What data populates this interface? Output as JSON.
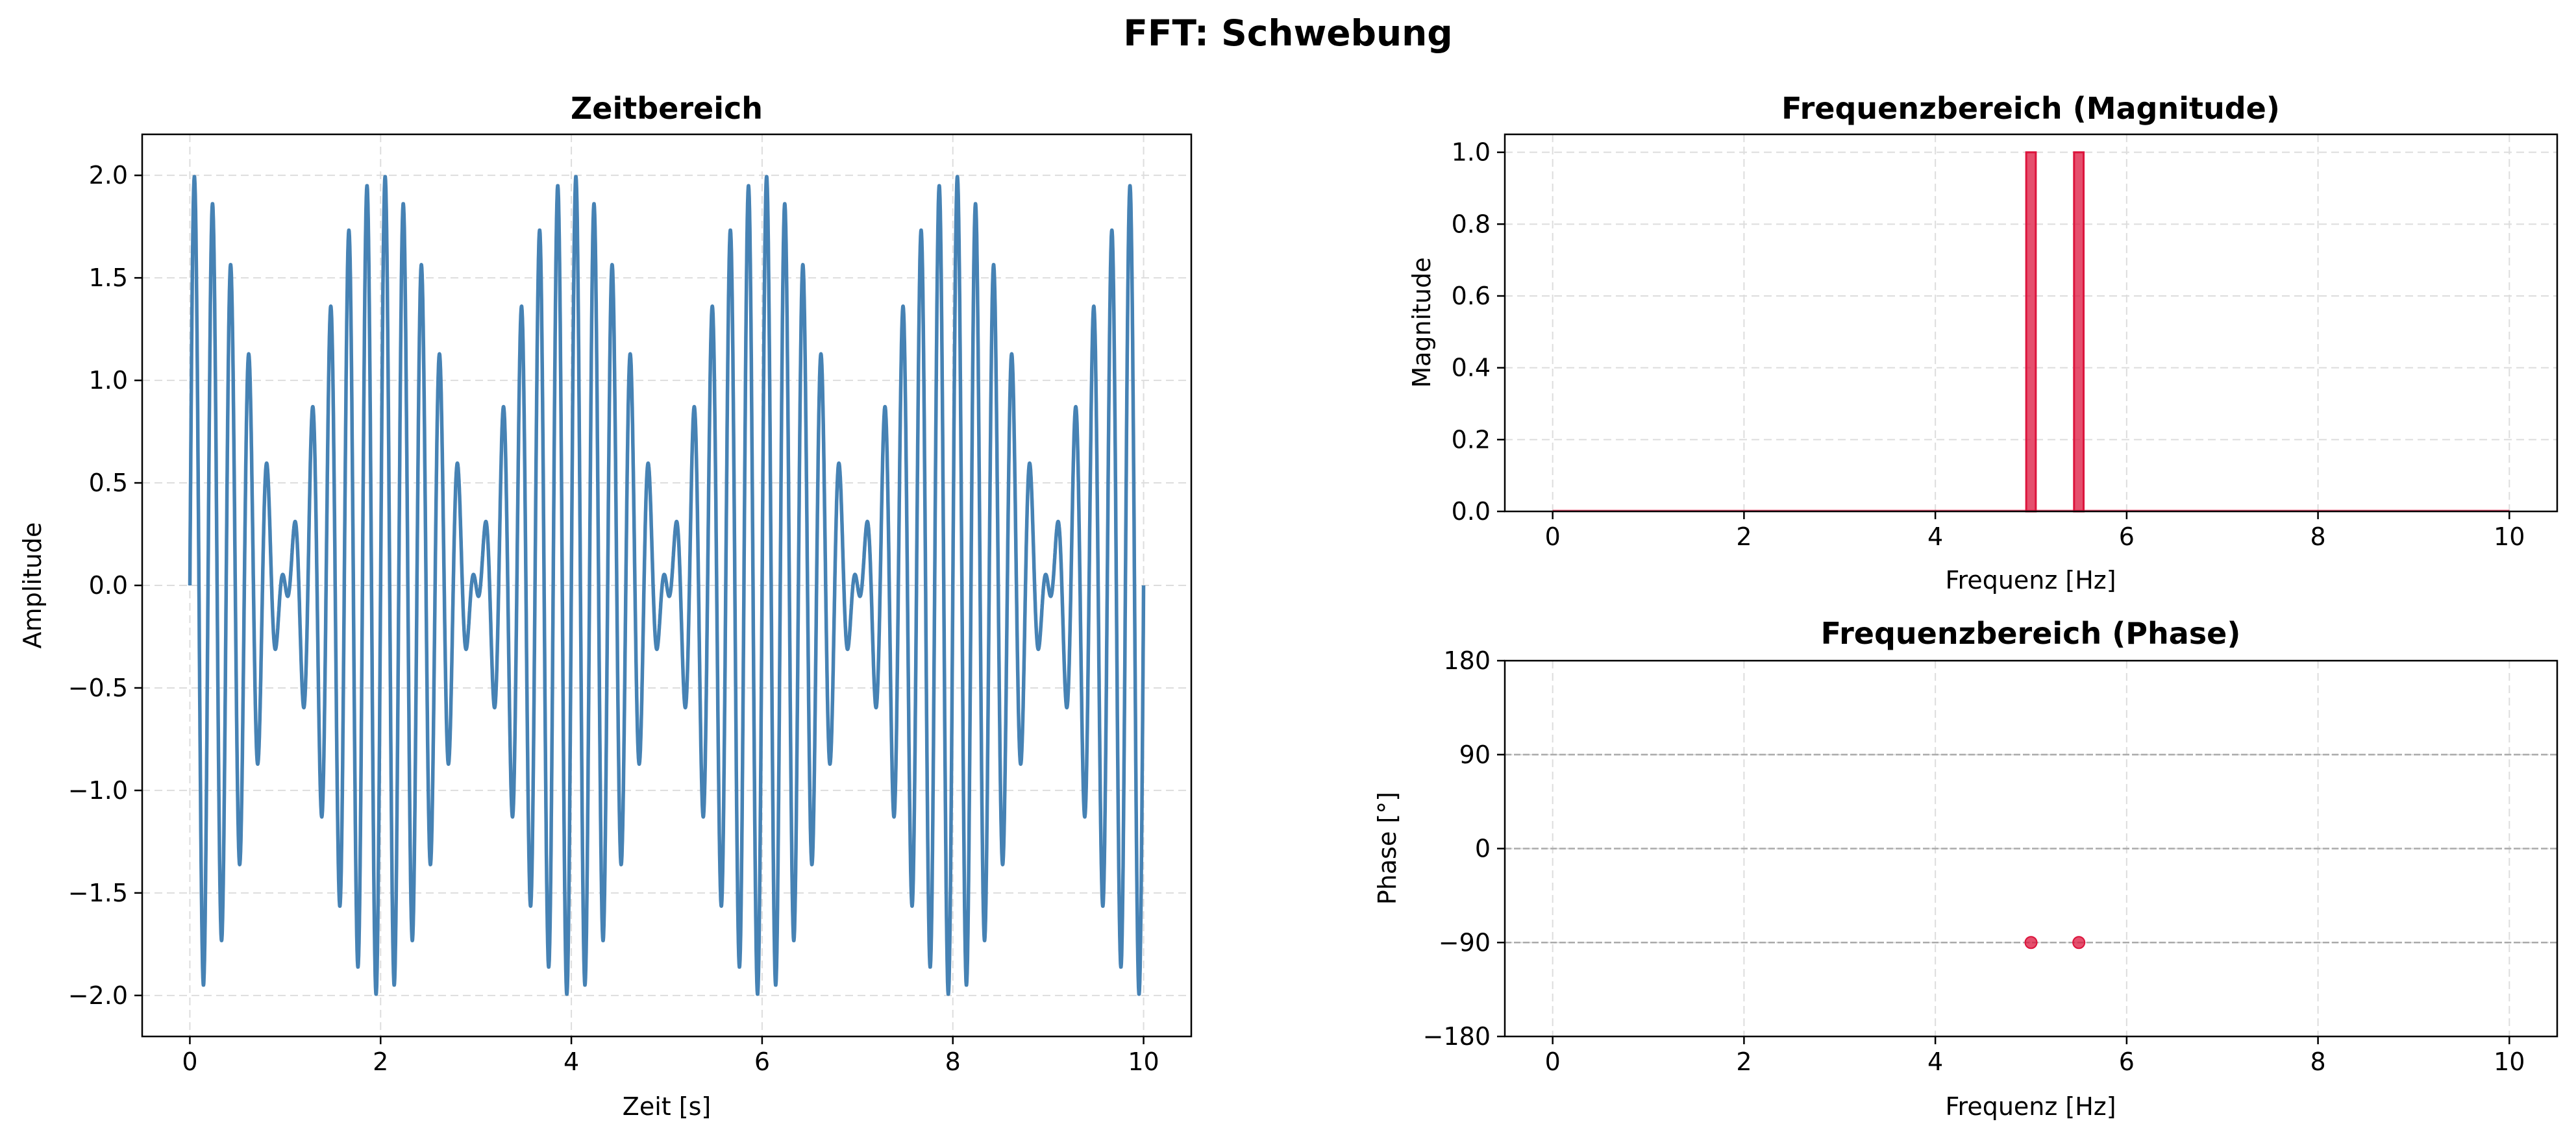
{
  "figure": {
    "title": "FFT: Schwebung"
  },
  "chart_data": [
    {
      "type": "line",
      "title": "Zeitbereich",
      "xlabel": "Zeit [s]",
      "ylabel": "Amplitude",
      "xlim": [
        -0.5,
        10.5
      ],
      "ylim": [
        -2.2,
        2.2
      ],
      "xticks": [
        0,
        2,
        4,
        6,
        8,
        10
      ],
      "xtick_labels": [
        "0",
        "2",
        "4",
        "6",
        "8",
        "10"
      ],
      "yticks": [
        -2.0,
        -1.5,
        -1.0,
        -0.5,
        0.0,
        0.5,
        1.0,
        1.5,
        2.0
      ],
      "ytick_labels": [
        "−2.0",
        "−1.5",
        "−1.0",
        "−0.5",
        "0.0",
        "0.5",
        "1.0",
        "1.5",
        "2.0"
      ],
      "grid": true,
      "series": [
        {
          "signal": "sin(2π·5·t) + sin(2π·5.5·t)",
          "components": [
            {
              "frequency": 5.0,
              "amplitude": 1.0
            },
            {
              "frequency": 5.5,
              "amplitude": 1.0
            }
          ],
          "x_range": [
            0,
            10
          ],
          "color": "#4682b4"
        }
      ]
    },
    {
      "type": "bar",
      "title": "Frequenzbereich (Magnitude)",
      "xlabel": "Frequenz [Hz]",
      "ylabel": "Magnitude",
      "xlim": [
        -0.5,
        10.5
      ],
      "ylim": [
        0,
        1.05
      ],
      "xticks": [
        0,
        2,
        4,
        6,
        8,
        10
      ],
      "xtick_labels": [
        "0",
        "2",
        "4",
        "6",
        "8",
        "10"
      ],
      "yticks": [
        0.0,
        0.2,
        0.4,
        0.6,
        0.8,
        1.0
      ],
      "ytick_labels": [
        "0.0",
        "0.2",
        "0.4",
        "0.6",
        "0.8",
        "1.0"
      ],
      "grid": true,
      "bar_width": 0.1,
      "color": "#dc143c",
      "x": [
        5.0,
        5.5
      ],
      "values": [
        1.0,
        1.0
      ]
    },
    {
      "type": "scatter",
      "title": "Frequenzbereich (Phase)",
      "xlabel": "Frequenz [Hz]",
      "ylabel": "Phase [°]",
      "xlim": [
        -0.5,
        10.5
      ],
      "ylim": [
        -180,
        180
      ],
      "xticks": [
        0,
        2,
        4,
        6,
        8,
        10
      ],
      "xtick_labels": [
        "0",
        "2",
        "4",
        "6",
        "8",
        "10"
      ],
      "yticks": [
        -180,
        -90,
        0,
        90,
        180
      ],
      "ytick_labels": [
        "−180",
        "−90",
        "0",
        "90",
        "180"
      ],
      "grid": true,
      "reference_lines": [
        -90,
        0,
        90
      ],
      "color": "#dc143c",
      "x": [
        5.0,
        5.5
      ],
      "y": [
        -90,
        -90
      ]
    }
  ]
}
